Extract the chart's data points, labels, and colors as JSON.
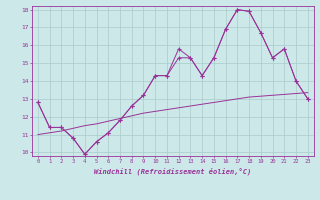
{
  "x_values": [
    0,
    1,
    2,
    3,
    4,
    5,
    6,
    7,
    8,
    9,
    10,
    11,
    12,
    13,
    14,
    15,
    16,
    17,
    18,
    19,
    20,
    21,
    22,
    23
  ],
  "line1": [
    12.8,
    11.4,
    11.4,
    10.8,
    9.9,
    10.6,
    11.1,
    11.8,
    12.6,
    13.2,
    14.3,
    14.3,
    15.8,
    15.3,
    14.3,
    15.3,
    16.9,
    18.0,
    17.9,
    16.7,
    15.3,
    15.8,
    14.0,
    13.0
  ],
  "line2": [
    12.8,
    11.4,
    11.4,
    10.8,
    9.9,
    10.6,
    11.1,
    11.8,
    12.6,
    13.2,
    14.3,
    14.3,
    15.3,
    15.3,
    14.3,
    15.3,
    16.9,
    18.0,
    17.9,
    16.7,
    15.3,
    15.8,
    14.0,
    13.0
  ],
  "line3": [
    11.0,
    11.1,
    11.2,
    11.35,
    11.5,
    11.6,
    11.75,
    11.9,
    12.05,
    12.2,
    12.3,
    12.4,
    12.5,
    12.6,
    12.7,
    12.8,
    12.9,
    13.0,
    13.1,
    13.15,
    13.2,
    13.25,
    13.3,
    13.35
  ],
  "line_color": "#993399",
  "background_color": "#cce8e8",
  "grid_color": "#aacccc",
  "xlabel": "Windchill (Refroidissement éolien,°C)",
  "ylim": [
    10,
    18
  ],
  "xlim": [
    0,
    23
  ],
  "yticks": [
    10,
    11,
    12,
    13,
    14,
    15,
    16,
    17,
    18
  ],
  "xticks": [
    0,
    1,
    2,
    3,
    4,
    5,
    6,
    7,
    8,
    9,
    10,
    11,
    12,
    13,
    14,
    15,
    16,
    17,
    18,
    19,
    20,
    21,
    22,
    23
  ]
}
